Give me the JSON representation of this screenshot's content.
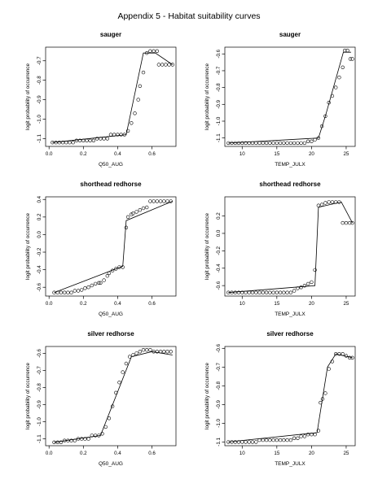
{
  "page": {
    "title": "Appendix 5 - Habitat suitability curves"
  },
  "chart_data": [
    {
      "type": "scatter",
      "title": "sauger",
      "xlabel": "Q50_AUG",
      "ylabel": "logit probability of occurrence",
      "xlim": [
        -0.02,
        0.74
      ],
      "ylim": [
        -1.14,
        -0.63
      ],
      "xticks": [
        {
          "v": 0.0,
          "label": "0.0"
        },
        {
          "v": 0.2,
          "label": "0.2"
        },
        {
          "v": 0.4,
          "label": "0.4"
        },
        {
          "v": 0.6,
          "label": "0.6"
        }
      ],
      "yticks": [
        {
          "v": -1.1,
          "label": "-1.1"
        },
        {
          "v": -1.0,
          "label": "-1.0"
        },
        {
          "v": -0.9,
          "label": "-0.9"
        },
        {
          "v": -0.8,
          "label": "-0.8"
        },
        {
          "v": -0.7,
          "label": "-0.7"
        }
      ],
      "points": [
        [
          0.02,
          -1.12
        ],
        [
          0.04,
          -1.12
        ],
        [
          0.06,
          -1.12
        ],
        [
          0.08,
          -1.12
        ],
        [
          0.1,
          -1.12
        ],
        [
          0.12,
          -1.12
        ],
        [
          0.14,
          -1.12
        ],
        [
          0.16,
          -1.11
        ],
        [
          0.18,
          -1.11
        ],
        [
          0.2,
          -1.11
        ],
        [
          0.22,
          -1.11
        ],
        [
          0.24,
          -1.11
        ],
        [
          0.26,
          -1.11
        ],
        [
          0.28,
          -1.1
        ],
        [
          0.3,
          -1.1
        ],
        [
          0.32,
          -1.1
        ],
        [
          0.34,
          -1.1
        ],
        [
          0.36,
          -1.08
        ],
        [
          0.38,
          -1.08
        ],
        [
          0.4,
          -1.08
        ],
        [
          0.42,
          -1.08
        ],
        [
          0.44,
          -1.08
        ],
        [
          0.46,
          -1.06
        ],
        [
          0.48,
          -1.02
        ],
        [
          0.5,
          -0.97
        ],
        [
          0.52,
          -0.9
        ],
        [
          0.53,
          -0.83
        ],
        [
          0.55,
          -0.76
        ],
        [
          0.57,
          -0.66
        ],
        [
          0.59,
          -0.65
        ],
        [
          0.61,
          -0.65
        ],
        [
          0.63,
          -0.65
        ],
        [
          0.64,
          -0.72
        ],
        [
          0.66,
          -0.72
        ],
        [
          0.68,
          -0.72
        ],
        [
          0.7,
          -0.72
        ],
        [
          0.72,
          -0.72
        ]
      ],
      "line": [
        [
          0.02,
          -1.12
        ],
        [
          0.45,
          -1.08
        ],
        [
          0.55,
          -0.66
        ],
        [
          0.62,
          -0.66
        ],
        [
          0.72,
          -0.72
        ]
      ]
    },
    {
      "type": "scatter",
      "title": "sauger",
      "xlabel": "TEMP_JULX",
      "ylabel": "logit probability of occurrence",
      "xlim": [
        7.5,
        26.3
      ],
      "ylim": [
        -1.15,
        -0.56
      ],
      "xticks": [
        {
          "v": 10,
          "label": "10"
        },
        {
          "v": 15,
          "label": "15"
        },
        {
          "v": 20,
          "label": "20"
        },
        {
          "v": 25,
          "label": "25"
        }
      ],
      "yticks": [
        {
          "v": -1.1,
          "label": "-1.1"
        },
        {
          "v": -1.0,
          "label": "-1.0"
        },
        {
          "v": -0.9,
          "label": "-0.9"
        },
        {
          "v": -0.8,
          "label": "-0.8"
        },
        {
          "v": -0.7,
          "label": "-0.7"
        },
        {
          "v": -0.6,
          "label": "-0.6"
        }
      ],
      "points": [
        [
          8,
          -1.13
        ],
        [
          8.5,
          -1.13
        ],
        [
          9,
          -1.13
        ],
        [
          9.5,
          -1.13
        ],
        [
          10,
          -1.13
        ],
        [
          10.5,
          -1.13
        ],
        [
          11,
          -1.13
        ],
        [
          11.5,
          -1.13
        ],
        [
          12,
          -1.13
        ],
        [
          12.5,
          -1.13
        ],
        [
          13,
          -1.13
        ],
        [
          13.5,
          -1.13
        ],
        [
          14,
          -1.13
        ],
        [
          14.5,
          -1.13
        ],
        [
          15,
          -1.13
        ],
        [
          15.5,
          -1.13
        ],
        [
          16,
          -1.13
        ],
        [
          16.5,
          -1.13
        ],
        [
          17,
          -1.13
        ],
        [
          17.5,
          -1.13
        ],
        [
          18,
          -1.13
        ],
        [
          18.5,
          -1.13
        ],
        [
          19,
          -1.13
        ],
        [
          19.5,
          -1.12
        ],
        [
          20,
          -1.12
        ],
        [
          20.5,
          -1.11
        ],
        [
          21,
          -1.1
        ],
        [
          21.5,
          -1.03
        ],
        [
          22,
          -0.97
        ],
        [
          22.5,
          -0.89
        ],
        [
          23,
          -0.85
        ],
        [
          23.5,
          -0.8
        ],
        [
          24,
          -0.74
        ],
        [
          24.5,
          -0.68
        ],
        [
          24.8,
          -0.58
        ],
        [
          25.2,
          -0.58
        ],
        [
          25.6,
          -0.63
        ],
        [
          25.9,
          -0.63
        ]
      ],
      "line": [
        [
          8,
          -1.13
        ],
        [
          21,
          -1.1
        ],
        [
          22,
          -0.97
        ],
        [
          24.6,
          -0.59
        ],
        [
          25.7,
          -0.59
        ]
      ]
    },
    {
      "type": "scatter",
      "title": "shorthead redhorse",
      "xlabel": "Q50_AUG",
      "ylabel": "logit probability of occurrence",
      "xlim": [
        -0.02,
        0.74
      ],
      "ylim": [
        -0.7,
        0.43
      ],
      "xticks": [
        {
          "v": 0.0,
          "label": "0.0"
        },
        {
          "v": 0.2,
          "label": "0.2"
        },
        {
          "v": 0.4,
          "label": "0.4"
        },
        {
          "v": 0.6,
          "label": "0.6"
        }
      ],
      "yticks": [
        {
          "v": -0.6,
          "label": "-0.6"
        },
        {
          "v": -0.4,
          "label": "-0.4"
        },
        {
          "v": -0.2,
          "label": "-0.2"
        },
        {
          "v": 0.0,
          "label": "0.0"
        },
        {
          "v": 0.2,
          "label": "0.2"
        },
        {
          "v": 0.4,
          "label": "0.4"
        }
      ],
      "points": [
        [
          0.03,
          -0.66
        ],
        [
          0.05,
          -0.66
        ],
        [
          0.07,
          -0.66
        ],
        [
          0.09,
          -0.66
        ],
        [
          0.11,
          -0.66
        ],
        [
          0.13,
          -0.66
        ],
        [
          0.15,
          -0.64
        ],
        [
          0.17,
          -0.64
        ],
        [
          0.19,
          -0.63
        ],
        [
          0.21,
          -0.61
        ],
        [
          0.23,
          -0.6
        ],
        [
          0.25,
          -0.58
        ],
        [
          0.27,
          -0.56
        ],
        [
          0.29,
          -0.55
        ],
        [
          0.3,
          -0.55
        ],
        [
          0.32,
          -0.52
        ],
        [
          0.34,
          -0.47
        ],
        [
          0.35,
          -0.44
        ],
        [
          0.37,
          -0.41
        ],
        [
          0.39,
          -0.39
        ],
        [
          0.41,
          -0.37
        ],
        [
          0.43,
          -0.37
        ],
        [
          0.45,
          0.08
        ],
        [
          0.46,
          0.2
        ],
        [
          0.48,
          0.23
        ],
        [
          0.49,
          0.24
        ],
        [
          0.51,
          0.26
        ],
        [
          0.53,
          0.28
        ],
        [
          0.55,
          0.3
        ],
        [
          0.57,
          0.31
        ],
        [
          0.59,
          0.38
        ],
        [
          0.61,
          0.38
        ],
        [
          0.63,
          0.38
        ],
        [
          0.65,
          0.38
        ],
        [
          0.67,
          0.38
        ],
        [
          0.69,
          0.38
        ],
        [
          0.71,
          0.38
        ]
      ],
      "line": [
        [
          0.03,
          -0.66
        ],
        [
          0.43,
          -0.36
        ],
        [
          0.45,
          0.16
        ],
        [
          0.72,
          0.38
        ]
      ]
    },
    {
      "type": "scatter",
      "title": "shorthead redhorse",
      "xlabel": "TEMP_JULX",
      "ylabel": "logit probability of occurrence",
      "xlim": [
        7.5,
        26.3
      ],
      "ylim": [
        -0.72,
        0.42
      ],
      "xticks": [
        {
          "v": 10,
          "label": "10"
        },
        {
          "v": 15,
          "label": "15"
        },
        {
          "v": 20,
          "label": "20"
        },
        {
          "v": 25,
          "label": "25"
        }
      ],
      "yticks": [
        {
          "v": -0.6,
          "label": "-0.6"
        },
        {
          "v": -0.4,
          "label": "-0.4"
        },
        {
          "v": -0.2,
          "label": "-0.2"
        },
        {
          "v": 0.0,
          "label": "0.0"
        },
        {
          "v": 0.2,
          "label": "0.2"
        }
      ],
      "points": [
        [
          8,
          -0.68
        ],
        [
          8.5,
          -0.68
        ],
        [
          9,
          -0.68
        ],
        [
          9.5,
          -0.68
        ],
        [
          10,
          -0.68
        ],
        [
          10.5,
          -0.68
        ],
        [
          11,
          -0.68
        ],
        [
          11.5,
          -0.68
        ],
        [
          12,
          -0.68
        ],
        [
          12.5,
          -0.68
        ],
        [
          13,
          -0.68
        ],
        [
          13.5,
          -0.68
        ],
        [
          14,
          -0.68
        ],
        [
          14.5,
          -0.68
        ],
        [
          15,
          -0.68
        ],
        [
          15.5,
          -0.68
        ],
        [
          16,
          -0.68
        ],
        [
          16.5,
          -0.68
        ],
        [
          17,
          -0.68
        ],
        [
          17.5,
          -0.66
        ],
        [
          18,
          -0.63
        ],
        [
          18.5,
          -0.62
        ],
        [
          19,
          -0.6
        ],
        [
          19.5,
          -0.58
        ],
        [
          20,
          -0.56
        ],
        [
          20.5,
          -0.42
        ],
        [
          21,
          0.32
        ],
        [
          21.5,
          0.33
        ],
        [
          22,
          0.35
        ],
        [
          22.5,
          0.36
        ],
        [
          23,
          0.36
        ],
        [
          23.5,
          0.36
        ],
        [
          24,
          0.36
        ],
        [
          24.5,
          0.12
        ],
        [
          25,
          0.12
        ],
        [
          25.5,
          0.12
        ],
        [
          25.9,
          0.12
        ]
      ],
      "line": [
        [
          8,
          -0.68
        ],
        [
          20.5,
          -0.6
        ],
        [
          21,
          0.3
        ],
        [
          24.3,
          0.36
        ],
        [
          25.9,
          0.12
        ]
      ]
    },
    {
      "type": "scatter",
      "title": "silver redhorse",
      "xlabel": "Q50_AUG",
      "ylabel": "logit probability of occurrence",
      "xlim": [
        -0.02,
        0.74
      ],
      "ylim": [
        -1.14,
        -0.56
      ],
      "xticks": [
        {
          "v": 0.0,
          "label": "0.0"
        },
        {
          "v": 0.2,
          "label": "0.2"
        },
        {
          "v": 0.4,
          "label": "0.4"
        },
        {
          "v": 0.6,
          "label": "0.6"
        }
      ],
      "yticks": [
        {
          "v": -1.1,
          "label": "-1.1"
        },
        {
          "v": -1.0,
          "label": "-1.0"
        },
        {
          "v": -0.9,
          "label": "-0.9"
        },
        {
          "v": -0.8,
          "label": "-0.8"
        },
        {
          "v": -0.7,
          "label": "-0.7"
        },
        {
          "v": -0.6,
          "label": "-0.6"
        }
      ],
      "points": [
        [
          0.03,
          -1.12
        ],
        [
          0.05,
          -1.12
        ],
        [
          0.07,
          -1.12
        ],
        [
          0.09,
          -1.11
        ],
        [
          0.11,
          -1.11
        ],
        [
          0.13,
          -1.11
        ],
        [
          0.15,
          -1.11
        ],
        [
          0.17,
          -1.1
        ],
        [
          0.19,
          -1.1
        ],
        [
          0.21,
          -1.1
        ],
        [
          0.23,
          -1.1
        ],
        [
          0.25,
          -1.08
        ],
        [
          0.27,
          -1.08
        ],
        [
          0.29,
          -1.08
        ],
        [
          0.31,
          -1.07
        ],
        [
          0.33,
          -1.03
        ],
        [
          0.35,
          -0.98
        ],
        [
          0.37,
          -0.91
        ],
        [
          0.39,
          -0.83
        ],
        [
          0.41,
          -0.77
        ],
        [
          0.43,
          -0.71
        ],
        [
          0.45,
          -0.66
        ],
        [
          0.47,
          -0.62
        ],
        [
          0.49,
          -0.61
        ],
        [
          0.51,
          -0.6
        ],
        [
          0.53,
          -0.59
        ],
        [
          0.55,
          -0.58
        ],
        [
          0.57,
          -0.58
        ],
        [
          0.59,
          -0.58
        ],
        [
          0.61,
          -0.59
        ],
        [
          0.63,
          -0.59
        ],
        [
          0.65,
          -0.59
        ],
        [
          0.67,
          -0.59
        ],
        [
          0.69,
          -0.59
        ],
        [
          0.71,
          -0.59
        ]
      ],
      "line": [
        [
          0.03,
          -1.12
        ],
        [
          0.3,
          -1.08
        ],
        [
          0.48,
          -0.62
        ],
        [
          0.6,
          -0.59
        ],
        [
          0.72,
          -0.61
        ]
      ]
    },
    {
      "type": "scatter",
      "title": "silver redhorse",
      "xlabel": "TEMP_JULX",
      "ylabel": "logit probability of occurrence",
      "xlim": [
        7.5,
        26.3
      ],
      "ylim": [
        -1.12,
        -0.59
      ],
      "xticks": [
        {
          "v": 10,
          "label": "10"
        },
        {
          "v": 15,
          "label": "15"
        },
        {
          "v": 20,
          "label": "20"
        },
        {
          "v": 25,
          "label": "25"
        }
      ],
      "yticks": [
        {
          "v": -1.1,
          "label": "-1.1"
        },
        {
          "v": -1.0,
          "label": "-1.0"
        },
        {
          "v": -0.9,
          "label": "-0.9"
        },
        {
          "v": -0.8,
          "label": "-0.8"
        },
        {
          "v": -0.7,
          "label": "-0.7"
        },
        {
          "v": -0.6,
          "label": "-0.6"
        }
      ],
      "points": [
        [
          8,
          -1.1
        ],
        [
          8.5,
          -1.1
        ],
        [
          9,
          -1.1
        ],
        [
          9.5,
          -1.1
        ],
        [
          10,
          -1.1
        ],
        [
          10.5,
          -1.1
        ],
        [
          11,
          -1.1
        ],
        [
          11.5,
          -1.1
        ],
        [
          12,
          -1.1
        ],
        [
          12.5,
          -1.09
        ],
        [
          13,
          -1.09
        ],
        [
          13.5,
          -1.09
        ],
        [
          14,
          -1.09
        ],
        [
          14.5,
          -1.09
        ],
        [
          15,
          -1.09
        ],
        [
          15.5,
          -1.09
        ],
        [
          16,
          -1.09
        ],
        [
          16.5,
          -1.09
        ],
        [
          17,
          -1.09
        ],
        [
          17.5,
          -1.08
        ],
        [
          18,
          -1.08
        ],
        [
          18.5,
          -1.07
        ],
        [
          19,
          -1.07
        ],
        [
          19.5,
          -1.06
        ],
        [
          20,
          -1.06
        ],
        [
          20.5,
          -1.06
        ],
        [
          21,
          -1.04
        ],
        [
          21.3,
          -0.89
        ],
        [
          21.6,
          -0.87
        ],
        [
          22,
          -0.84
        ],
        [
          22.5,
          -0.71
        ],
        [
          23,
          -0.67
        ],
        [
          23.5,
          -0.63
        ],
        [
          24,
          -0.63
        ],
        [
          24.5,
          -0.63
        ],
        [
          25,
          -0.64
        ],
        [
          25.5,
          -0.65
        ],
        [
          25.9,
          -0.65
        ]
      ],
      "line": [
        [
          8,
          -1.1
        ],
        [
          20.8,
          -1.05
        ],
        [
          22.3,
          -0.7
        ],
        [
          23.5,
          -0.63
        ],
        [
          25.9,
          -0.65
        ]
      ]
    }
  ]
}
